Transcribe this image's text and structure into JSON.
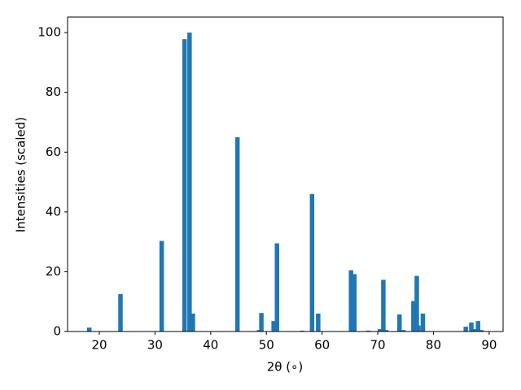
{
  "chart_data": {
    "type": "bar",
    "x": [
      18.2,
      23.8,
      31.2,
      35.3,
      36.2,
      36.8,
      44.8,
      48.7,
      49.1,
      51.3,
      51.9,
      56.4,
      58.2,
      59.3,
      65.2,
      65.8,
      68.3,
      70.4,
      71.0,
      71.5,
      73.9,
      74.6,
      76.4,
      77.0,
      77.3,
      78.1,
      85.8,
      86.8,
      87.3,
      88.0,
      88.6
    ],
    "values": [
      1.3,
      12.5,
      30.3,
      97.8,
      100,
      6,
      65,
      0.5,
      6.2,
      3.5,
      29.5,
      0.3,
      46,
      6,
      20.5,
      19.2,
      0.3,
      0.8,
      17.3,
      0.5,
      5.7,
      0.5,
      10.2,
      18.6,
      2,
      6,
      1.6,
      3,
      0.8,
      3.5,
      0.5
    ],
    "color": "#1f77b4",
    "xlabel": "2θ (∘)",
    "ylabel": "Intensities (scaled)",
    "xlim": [
      14.3,
      92.5
    ],
    "ylim": [
      0,
      105.2
    ],
    "xticks": [
      20,
      30,
      40,
      50,
      60,
      70,
      80,
      90
    ],
    "yticks": [
      0,
      20,
      40,
      60,
      80,
      100
    ]
  }
}
